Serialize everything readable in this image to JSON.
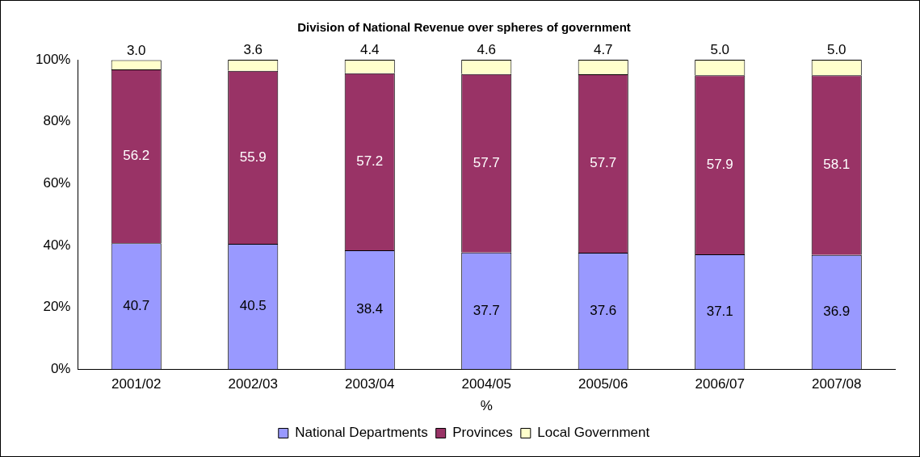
{
  "chart_data": {
    "type": "bar",
    "title": "Division of National Revenue over spheres of government",
    "xlabel": "%",
    "categories": [
      "2001/02",
      "2002/03",
      "2003/04",
      "2004/05",
      "2005/06",
      "2006/07",
      "2007/08"
    ],
    "stacked": true,
    "legend": "bottom",
    "ylim": [
      0,
      100
    ],
    "yticks": [
      {
        "value": 0,
        "label": "0%"
      },
      {
        "value": 20,
        "label": "20%"
      },
      {
        "value": 40,
        "label": "40%"
      },
      {
        "value": 60,
        "label": "60%"
      },
      {
        "value": 80,
        "label": "80%"
      },
      {
        "value": 100,
        "label": "100%"
      }
    ],
    "series": [
      {
        "name": "National Departments",
        "color": "#9999ff",
        "values": [
          40.7,
          40.5,
          38.4,
          37.7,
          37.6,
          37.1,
          36.9
        ],
        "value_labels": [
          "40.7",
          "40.5",
          "38.4",
          "37.7",
          "37.6",
          "37.1",
          "36.9"
        ]
      },
      {
        "name": "Provinces",
        "color": "#993366",
        "values": [
          56.2,
          55.9,
          57.2,
          57.7,
          57.7,
          57.9,
          58.1
        ],
        "value_labels": [
          "56.2",
          "55.9",
          "57.2",
          "57.7",
          "57.7",
          "57.9",
          "58.1"
        ]
      },
      {
        "name": "Local Government",
        "color": "#ffffcc",
        "values": [
          3.0,
          3.6,
          4.4,
          4.6,
          4.7,
          5.0,
          5.0
        ],
        "value_labels": [
          "3.0",
          "3.6",
          "4.4",
          "4.6",
          "4.7",
          "5.0",
          "5.0"
        ]
      }
    ]
  }
}
